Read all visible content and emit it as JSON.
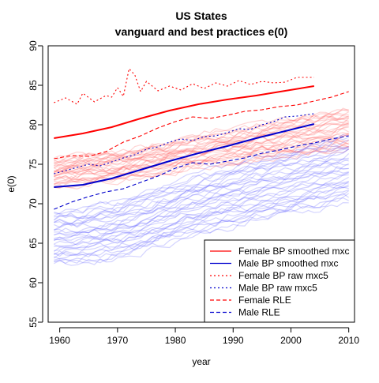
{
  "chart_data": {
    "type": "line",
    "title_line1": "US States",
    "title_line2": "vanguard and best practices e(0)",
    "xlabel": "year",
    "ylabel": "e(0)",
    "xlim": [
      1958,
      2011
    ],
    "ylim": [
      55,
      90
    ],
    "x_ticks": [
      1960,
      1970,
      1980,
      1990,
      2000,
      2010
    ],
    "y_ticks": [
      55,
      60,
      65,
      70,
      75,
      80,
      85,
      90
    ],
    "colors": {
      "female": "#ff0000",
      "male": "#0000cd",
      "female_states": "#ff6666",
      "male_states": "#6666ff"
    },
    "legend": [
      {
        "label": "Female BP smoothed mxc",
        "color": "#ff0000",
        "dash": "solid"
      },
      {
        "label": "Male BP smoothed mxc",
        "color": "#0000cd",
        "dash": "solid"
      },
      {
        "label": "Female BP raw mxc5",
        "color": "#ff0000",
        "dash": "dotted"
      },
      {
        "label": "Male BP raw mxc5",
        "color": "#0000cd",
        "dash": "dotted"
      },
      {
        "label": "Female RLE",
        "color": "#ff0000",
        "dash": "dashed"
      },
      {
        "label": "Male RLE",
        "color": "#0000cd",
        "dash": "dashed"
      }
    ],
    "series": [
      {
        "name": "Female BP smoothed mxc",
        "x": [
          1959,
          1964,
          1969,
          1974,
          1979,
          1984,
          1989,
          1994,
          1999,
          2004
        ],
        "values": [
          78.3,
          78.9,
          79.7,
          80.8,
          81.8,
          82.6,
          83.2,
          83.7,
          84.3,
          84.9
        ]
      },
      {
        "name": "Male BP smoothed mxc",
        "x": [
          1959,
          1964,
          1969,
          1974,
          1979,
          1984,
          1989,
          1994,
          1999,
          2004
        ],
        "values": [
          72.1,
          72.4,
          73.2,
          74.3,
          75.4,
          76.4,
          77.3,
          78.3,
          79.2,
          80.1
        ]
      },
      {
        "name": "Female BP raw mxc5",
        "x": [
          1959,
          1961,
          1963,
          1964,
          1966,
          1968,
          1969,
          1970,
          1971,
          1972,
          1973,
          1974,
          1975,
          1977,
          1979,
          1981,
          1983,
          1985,
          1987,
          1989,
          1991,
          1993,
          1995,
          1997,
          1999,
          2001,
          2004
        ],
        "values": [
          82.8,
          83.4,
          82.6,
          84.0,
          82.9,
          83.7,
          83.5,
          84.7,
          83.6,
          87.1,
          86.3,
          84.2,
          85.5,
          84.3,
          84.9,
          84.4,
          85.2,
          84.6,
          85.3,
          84.9,
          85.6,
          85.1,
          85.5,
          85.3,
          85.4,
          86.0,
          86.0
        ]
      },
      {
        "name": "Male BP raw mxc5",
        "x": [
          1959,
          1961,
          1963,
          1965,
          1967,
          1969,
          1971,
          1973,
          1975,
          1977,
          1979,
          1981,
          1983,
          1985,
          1987,
          1989,
          1991,
          1993,
          1995,
          1997,
          1999,
          2001,
          2004
        ],
        "values": [
          73.8,
          74.2,
          74.6,
          75.0,
          74.8,
          75.3,
          75.8,
          76.2,
          76.9,
          77.2,
          77.8,
          78.2,
          78.0,
          78.5,
          78.6,
          79.0,
          79.5,
          79.4,
          80.0,
          80.4,
          81.0,
          81.1,
          81.4
        ]
      },
      {
        "name": "Female RLE",
        "x": [
          1959,
          1962,
          1965,
          1968,
          1971,
          1974,
          1977,
          1980,
          1983,
          1986,
          1989,
          1992,
          1995,
          1998,
          2001,
          2004,
          2007,
          2010
        ],
        "values": [
          75.7,
          76.1,
          76.0,
          76.6,
          77.8,
          78.6,
          79.6,
          80.4,
          81.0,
          80.8,
          81.2,
          81.7,
          81.9,
          82.3,
          82.5,
          83.0,
          83.5,
          84.2
        ]
      },
      {
        "name": "Male RLE",
        "x": [
          1959,
          1962,
          1965,
          1968,
          1971,
          1974,
          1977,
          1980,
          1983,
          1986,
          1989,
          1992,
          1995,
          1998,
          2001,
          2004,
          2007,
          2010
        ],
        "values": [
          69.3,
          70.2,
          70.9,
          71.5,
          71.9,
          72.7,
          73.5,
          74.5,
          75.2,
          75.0,
          75.4,
          75.8,
          76.4,
          76.8,
          77.3,
          77.7,
          78.2,
          78.6
        ]
      }
    ],
    "state_bands": {
      "female": {
        "start": [
          [
            1959,
            72.3
          ],
          [
            1959,
            75.6
          ]
        ],
        "end": [
          [
            2010,
            77.0
          ],
          [
            2010,
            82.0
          ]
        ],
        "count": 34
      },
      "male": {
        "start": [
          [
            1959,
            62.3
          ],
          [
            1959,
            69.0
          ]
        ],
        "end": [
          [
            2010,
            70.3
          ],
          [
            2010,
            78.5
          ]
        ],
        "count": 34
      }
    }
  }
}
